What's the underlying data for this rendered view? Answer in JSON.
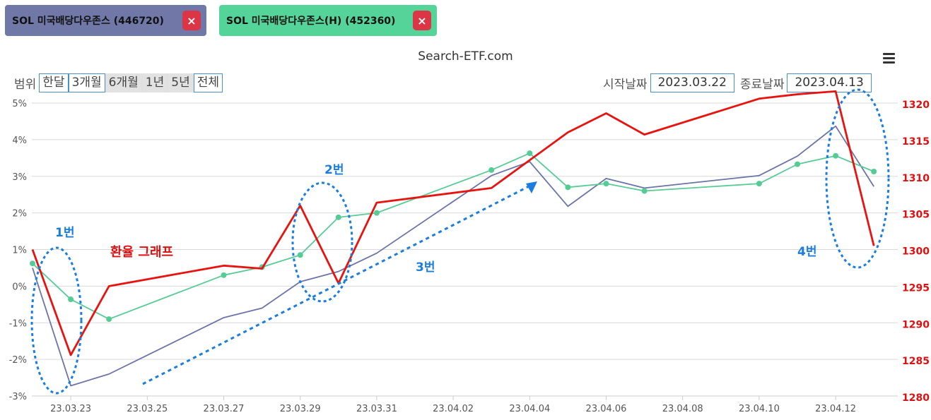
{
  "tags": [
    {
      "label": "SOL 미국배당다우존스 (446720)",
      "remove": "×",
      "color": "#7078a8"
    },
    {
      "label": "SOL 미국배당다우존스(H) (452360)",
      "remove": "×",
      "color": "#55d49a"
    }
  ],
  "site_title": "Search-ETF.com",
  "range": {
    "label": "범위",
    "buttons": [
      "한달",
      "3개월",
      "6개월",
      "1년",
      "5년",
      "전체"
    ]
  },
  "dates": {
    "start_label": "시작날짜",
    "start_value": "2023.03.22",
    "end_label": "종료날짜",
    "end_value": "2023.04.13"
  },
  "chart_data": {
    "type": "line",
    "x": [
      "2023.03.22",
      "2023.03.23",
      "2023.03.24",
      "2023.03.27",
      "2023.03.28",
      "2023.03.29",
      "2023.03.30",
      "2023.03.31",
      "2023.04.03",
      "2023.04.04",
      "2023.04.05",
      "2023.04.06",
      "2023.04.07",
      "2023.04.10",
      "2023.04.11",
      "2023.04.12",
      "2023.04.13"
    ],
    "x_ticks": [
      "23.03.23",
      "23.03.25",
      "23.03.27",
      "23.03.29",
      "23.03.31",
      "23.04.02",
      "23.04.04",
      "23.04.06",
      "23.04.08",
      "23.04.10",
      "23.04.12"
    ],
    "y_left": {
      "ticks": [
        "5%",
        "4%",
        "3%",
        "2%",
        "1%",
        "0%",
        "-1%",
        "-2%",
        "-3%"
      ],
      "range": [
        -3,
        5
      ]
    },
    "y_right": {
      "ticks": [
        "1320",
        "1315",
        "1310",
        "1305",
        "1300",
        "1295",
        "1290",
        "1285",
        "1280"
      ],
      "range": [
        1280,
        1320
      ]
    },
    "series": [
      {
        "key": "etf_446720",
        "axis": "left",
        "color": "#6b74a8",
        "markers": false,
        "values": [
          0.5,
          -2.72,
          -2.4,
          -0.86,
          -0.6,
          0.12,
          0.4,
          0.9,
          3.02,
          3.4,
          2.18,
          2.94,
          2.68,
          3.02,
          3.55,
          4.37,
          2.72
        ]
      },
      {
        "key": "etf_452360",
        "axis": "left",
        "color": "#55cc96",
        "markers": true,
        "values": [
          0.62,
          -0.36,
          -0.9,
          0.3,
          0.52,
          0.85,
          1.88,
          2.0,
          3.17,
          3.63,
          2.7,
          2.8,
          2.6,
          2.8,
          3.33,
          3.56,
          3.13
        ]
      },
      {
        "key": "fx_rate",
        "axis": "right",
        "color": "#e8130f",
        "markers": false,
        "values": [
          1300.0,
          1285.6,
          1295.0,
          1297.8,
          1297.4,
          1306.0,
          1295.4,
          1306.4,
          1308.4,
          1312.2,
          1316.0,
          1318.6,
          1315.7,
          1320.6,
          1321.2,
          1321.6,
          1300.5
        ]
      }
    ],
    "annotations": {
      "fx_label": "환율 그래프",
      "marks": [
        "1번",
        "2번",
        "3번",
        "4번"
      ]
    }
  }
}
